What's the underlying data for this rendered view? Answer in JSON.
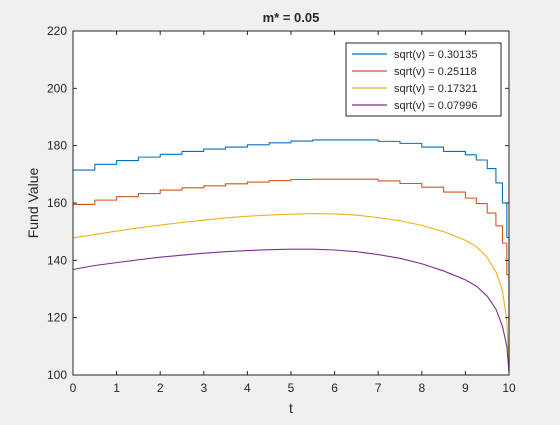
{
  "chart_data": {
    "type": "line",
    "title": "m* = 0.05",
    "xlabel": "t",
    "ylabel": "Fund Value",
    "xlim": [
      0,
      10
    ],
    "ylim": [
      100,
      220
    ],
    "xticks": [
      0,
      1,
      2,
      3,
      4,
      5,
      6,
      7,
      8,
      9,
      10
    ],
    "yticks": [
      100,
      120,
      140,
      160,
      180,
      200,
      220
    ],
    "grid": false,
    "legend_position": "top-right",
    "series": [
      {
        "name": "sqrt(v) = 0.30135",
        "color": "#0072BD",
        "step": true,
        "x": [
          0,
          0.5,
          1,
          1.5,
          2,
          2.5,
          3,
          3.5,
          4,
          4.5,
          5,
          5.5,
          6,
          6.5,
          7,
          7.5,
          8,
          8.5,
          9,
          9.25,
          9.5,
          9.7,
          9.85,
          9.95,
          10
        ],
        "y": [
          171.5,
          173.5,
          174.8,
          176,
          177,
          178,
          178.8,
          179.5,
          180.3,
          181,
          181.6,
          182,
          182,
          182,
          181.5,
          180.8,
          179.5,
          178,
          176.8,
          175,
          172,
          167,
          160,
          148,
          101
        ]
      },
      {
        "name": "sqrt(v) = 0.25118",
        "color": "#D95319",
        "step": true,
        "x": [
          0,
          0.5,
          1,
          1.5,
          2,
          2.5,
          3,
          3.5,
          4,
          4.5,
          5,
          5.5,
          6,
          6.5,
          7,
          7.5,
          8,
          8.5,
          9,
          9.25,
          9.5,
          9.7,
          9.85,
          9.95,
          10
        ],
        "y": [
          159.5,
          161,
          162.2,
          163.3,
          164.5,
          165.3,
          166,
          166.7,
          167.3,
          167.8,
          168.2,
          168.3,
          168.3,
          168.3,
          167.7,
          166.8,
          165.5,
          163.8,
          161.7,
          159.8,
          156.5,
          152,
          146,
          135,
          101
        ]
      },
      {
        "name": "sqrt(v) = 0.17321",
        "color": "#EDB120",
        "step": false,
        "x": [
          0,
          0.5,
          1,
          1.5,
          2,
          2.5,
          3,
          3.5,
          4,
          4.5,
          5,
          5.5,
          6,
          6.5,
          7,
          7.5,
          8,
          8.5,
          9,
          9.25,
          9.5,
          9.7,
          9.85,
          9.95,
          10
        ],
        "y": [
          147.8,
          149,
          150.2,
          151.3,
          152.3,
          153.2,
          154,
          154.8,
          155.4,
          155.8,
          156.1,
          156.3,
          156.2,
          155.8,
          154.9,
          153.8,
          152.2,
          150,
          147,
          144.8,
          141,
          136,
          129.5,
          119,
          101
        ]
      },
      {
        "name": "sqrt(v) = 0.07996",
        "color": "#7E2F8E",
        "step": false,
        "x": [
          0,
          0.5,
          1,
          1.5,
          2,
          2.5,
          3,
          3.5,
          4,
          4.5,
          5,
          5.5,
          6,
          6.5,
          7,
          7.5,
          8,
          8.5,
          9,
          9.25,
          9.5,
          9.7,
          9.85,
          9.95,
          10
        ],
        "y": [
          136.8,
          138.2,
          139.2,
          140.2,
          141.1,
          141.8,
          142.5,
          143,
          143.4,
          143.7,
          143.9,
          143.9,
          143.6,
          143,
          142,
          140.7,
          138.8,
          136.3,
          133.2,
          131,
          127.5,
          123,
          117,
          110,
          101
        ]
      }
    ]
  }
}
